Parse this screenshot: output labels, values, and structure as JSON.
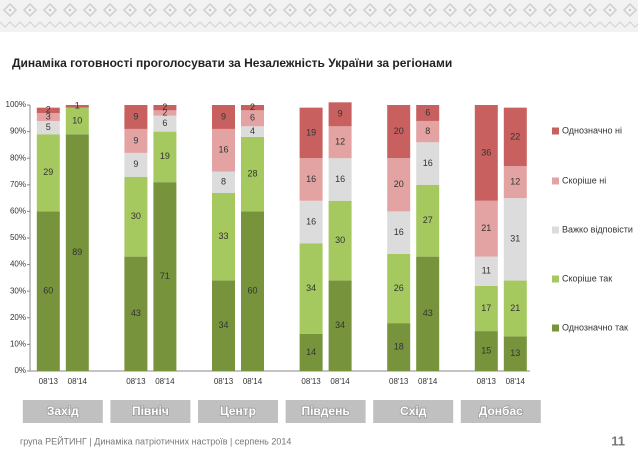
{
  "chart_data": {
    "type": "stacked-bar",
    "title": "Динаміка готовності проголосувати за Незалежність України за регіонами",
    "regions": [
      "Захід",
      "Північ",
      "Центр",
      "Південь",
      "Схід",
      "Донбас"
    ],
    "periods": [
      "08'13",
      "08'14"
    ],
    "ylim": [
      0,
      100
    ],
    "yticks": [
      {
        "value": 0,
        "label": "0%"
      },
      {
        "value": 10,
        "label": "10%"
      },
      {
        "value": 20,
        "label": "20%"
      },
      {
        "value": 30,
        "label": "30%"
      },
      {
        "value": 40,
        "label": "40%"
      },
      {
        "value": 50,
        "label": "50%"
      },
      {
        "value": 60,
        "label": "60%"
      },
      {
        "value": 70,
        "label": "70%"
      },
      {
        "value": 80,
        "label": "80%"
      },
      {
        "value": 90,
        "label": "90%"
      },
      {
        "value": 100,
        "label": "100%"
      }
    ],
    "grid": false,
    "legend": "right",
    "series": [
      {
        "name": "Однозначно так",
        "color": "#77933c",
        "values": [
          60,
          89,
          43,
          71,
          34,
          60,
          14,
          34,
          18,
          43,
          15,
          13
        ]
      },
      {
        "name": "Скоріше так",
        "color": "#a5c85f",
        "values": [
          29,
          10,
          30,
          19,
          33,
          28,
          34,
          30,
          26,
          27,
          17,
          21
        ]
      },
      {
        "name": "Важко відповісти",
        "color": "#dcdcdc",
        "values": [
          5,
          null,
          9,
          6,
          8,
          4,
          16,
          16,
          16,
          16,
          11,
          31
        ]
      },
      {
        "name": "Скоріше ні",
        "color": "#e3a3a2",
        "values": [
          3,
          null,
          9,
          2,
          16,
          6,
          16,
          12,
          20,
          8,
          21,
          12
        ]
      },
      {
        "name": "Однозначно ні",
        "color": "#c8605f",
        "values": [
          2,
          1,
          9,
          2,
          9,
          2,
          19,
          9,
          20,
          6,
          36,
          22
        ]
      }
    ]
  },
  "footer": {
    "text": "група РЕЙТИНГ | Динаміка патріотичних настроїв | серпень 2014",
    "page": "11"
  }
}
